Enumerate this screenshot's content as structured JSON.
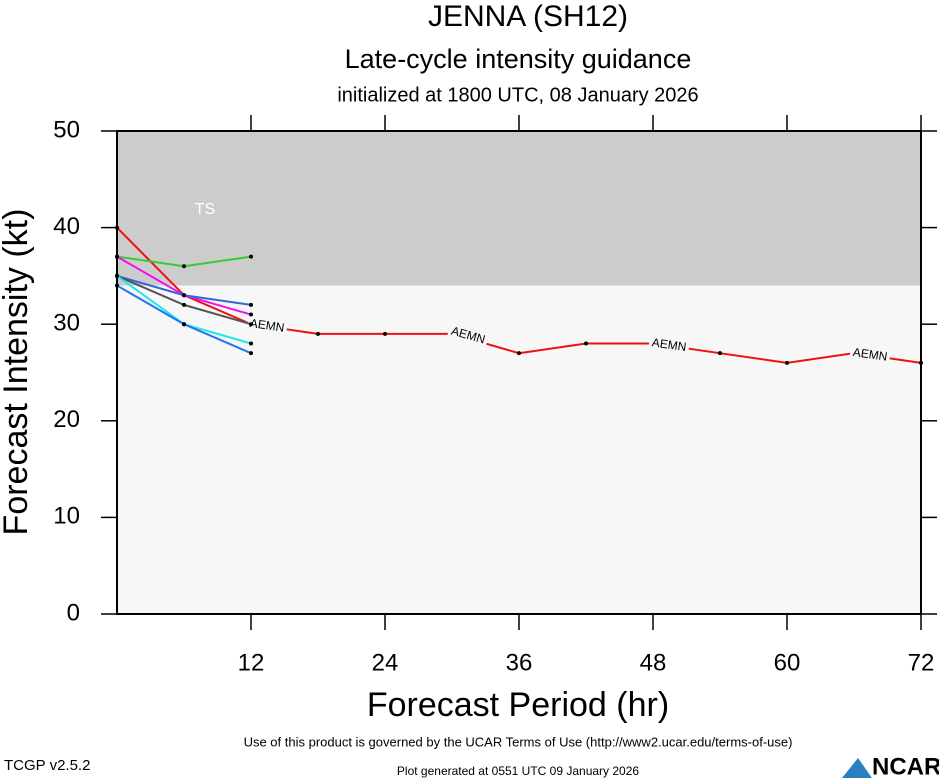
{
  "chart_data": {
    "type": "line",
    "title": "JENNA (SH12)",
    "subtitle": "Late-cycle intensity guidance",
    "init_text": "initialized at 1800 UTC, 08 January 2026",
    "x_label": "Forecast Period (hr)",
    "y_label": "Forecast Intensity (kt)",
    "xlim": [
      0,
      72
    ],
    "ylim": [
      0,
      50
    ],
    "xticks": [
      12,
      24,
      36,
      48,
      60,
      72
    ],
    "yticks": [
      0,
      10,
      20,
      30,
      40,
      50
    ],
    "bands": [
      {
        "label": "TS",
        "from": 34,
        "to": 50,
        "color": "#cccccc"
      }
    ],
    "series": [
      {
        "name": "AEMN",
        "color": "#ee1111",
        "x": [
          0,
          6,
          12,
          18,
          24,
          30,
          36,
          42,
          48,
          54,
          60,
          66,
          72
        ],
        "values": [
          40,
          33,
          30,
          29,
          29,
          29,
          27,
          28,
          28,
          27,
          26,
          27,
          26
        ]
      },
      {
        "color": "#33cc33",
        "x": [
          0,
          6,
          12
        ],
        "values": [
          37,
          36,
          37
        ]
      },
      {
        "color": "#ee11ee",
        "x": [
          0,
          6,
          12
        ],
        "values": [
          37,
          33,
          31
        ]
      },
      {
        "color": "#3366dd",
        "x": [
          0,
          6,
          12
        ],
        "values": [
          35,
          33,
          32
        ]
      },
      {
        "color": "#555555",
        "x": [
          0,
          6,
          12
        ],
        "values": [
          35,
          32,
          30
        ]
      },
      {
        "color": "#22e5ee",
        "x": [
          0,
          6,
          12
        ],
        "values": [
          35,
          30,
          28
        ]
      },
      {
        "color": "#2277ee",
        "x": [
          0,
          6,
          12
        ],
        "values": [
          34,
          30,
          27
        ]
      }
    ]
  },
  "footer": {
    "terms": "Use of this product is governed by the UCAR Terms of Use (http://www2.ucar.edu/terms-of-use)",
    "version": "TCGP v2.5.2",
    "generated": "Plot generated at 0551 UTC  09 January 2026",
    "logo": "NCAR"
  }
}
